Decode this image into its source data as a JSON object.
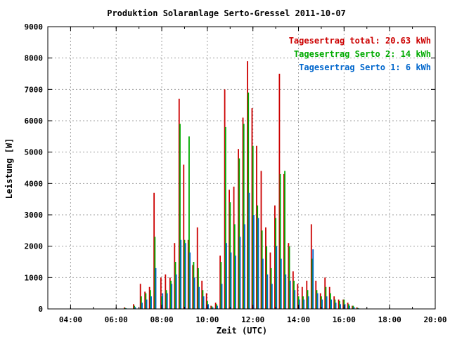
{
  "chart_data": {
    "type": "bar",
    "title": "Produktion Solaranlage Serto-Gressel 2011-10-07",
    "xlabel": "Zeit (UTC)",
    "ylabel": "Leistung [W]",
    "xlim": [
      3.0,
      20.0
    ],
    "ylim": [
      0,
      9000
    ],
    "x_ticks": [
      "04:00",
      "06:00",
      "08:00",
      "10:00",
      "12:00",
      "14:00",
      "16:00",
      "18:00",
      "20:00"
    ],
    "y_ticks": [
      "0",
      "1000",
      "2000",
      "3000",
      "4000",
      "5000",
      "6000",
      "7000",
      "8000",
      "9000"
    ],
    "grid": true,
    "legend_position": "top-right",
    "series": [
      {
        "name": "Tagesertrag total: 20.63 kWh",
        "color": "#cc0000",
        "x": [
          6.4,
          6.8,
          7.1,
          7.3,
          7.5,
          7.7,
          8.0,
          8.2,
          8.4,
          8.6,
          8.8,
          9.0,
          9.2,
          9.4,
          9.6,
          9.8,
          10.0,
          10.2,
          10.4,
          10.6,
          10.8,
          11.0,
          11.2,
          11.4,
          11.6,
          11.8,
          12.0,
          12.2,
          12.4,
          12.6,
          12.8,
          13.0,
          13.2,
          13.4,
          13.6,
          13.8,
          14.0,
          14.2,
          14.4,
          14.6,
          14.8,
          15.0,
          15.2,
          15.4,
          15.6,
          15.8,
          16.0,
          16.2,
          16.4,
          16.6
        ],
        "values": [
          50,
          150,
          800,
          550,
          700,
          3700,
          1000,
          1100,
          1000,
          2100,
          6700,
          4600,
          2200,
          1400,
          2600,
          900,
          500,
          100,
          200,
          1700,
          7000,
          3800,
          3900,
          5100,
          6100,
          7900,
          6400,
          5200,
          4400,
          2600,
          1800,
          3300,
          7500,
          4300,
          2100,
          1200,
          800,
          700,
          900,
          2700,
          900,
          500,
          1000,
          700,
          400,
          300,
          300,
          200,
          100,
          50
        ]
      },
      {
        "name": "Tagesertrag Serto 2: 14 kWh",
        "color": "#00aa00",
        "x": [
          6.4,
          6.8,
          7.1,
          7.3,
          7.5,
          7.7,
          8.0,
          8.2,
          8.4,
          8.6,
          8.8,
          9.0,
          9.2,
          9.4,
          9.6,
          9.8,
          10.0,
          10.2,
          10.4,
          10.6,
          10.8,
          11.0,
          11.2,
          11.4,
          11.6,
          11.8,
          12.0,
          12.2,
          12.4,
          12.6,
          12.8,
          13.0,
          13.2,
          13.4,
          13.6,
          13.8,
          14.0,
          14.2,
          14.4,
          14.6,
          14.8,
          15.0,
          15.2,
          15.4,
          15.6,
          15.8,
          16.0,
          16.2,
          16.4,
          16.6
        ],
        "values": [
          30,
          100,
          400,
          500,
          600,
          2300,
          400,
          600,
          900,
          1500,
          5900,
          2200,
          5500,
          1500,
          1300,
          600,
          250,
          80,
          150,
          1500,
          5800,
          3400,
          2700,
          4800,
          5900,
          6900,
          5200,
          3300,
          2500,
          2000,
          1300,
          2900,
          4300,
          4400,
          2000,
          900,
          400,
          400,
          600,
          1600,
          600,
          400,
          700,
          500,
          300,
          250,
          300,
          150,
          100,
          30
        ]
      },
      {
        "name": "Tagesertrag Serto 1: 6 kWh",
        "color": "#0066cc",
        "x": [
          6.4,
          6.8,
          7.1,
          7.3,
          7.5,
          7.7,
          8.0,
          8.2,
          8.4,
          8.6,
          8.8,
          9.0,
          9.2,
          9.4,
          9.6,
          9.8,
          10.0,
          10.2,
          10.4,
          10.6,
          10.8,
          11.0,
          11.2,
          11.4,
          11.6,
          11.8,
          12.0,
          12.2,
          12.4,
          12.6,
          12.8,
          13.0,
          13.2,
          13.4,
          13.6,
          13.8,
          14.0,
          14.2,
          14.4,
          14.6,
          14.8,
          15.0,
          15.2,
          15.4,
          15.6,
          15.8,
          16.0,
          16.2,
          16.4,
          16.6
        ],
        "values": [
          20,
          60,
          200,
          300,
          400,
          1300,
          500,
          500,
          800,
          1100,
          2200,
          2100,
          1800,
          1000,
          700,
          400,
          150,
          50,
          100,
          800,
          2100,
          1800,
          1700,
          2300,
          2700,
          3700,
          3000,
          2900,
          1600,
          1100,
          800,
          2000,
          1600,
          1100,
          900,
          600,
          300,
          300,
          400,
          1900,
          500,
          300,
          400,
          300,
          200,
          150,
          150,
          100,
          60,
          20
        ]
      }
    ]
  }
}
